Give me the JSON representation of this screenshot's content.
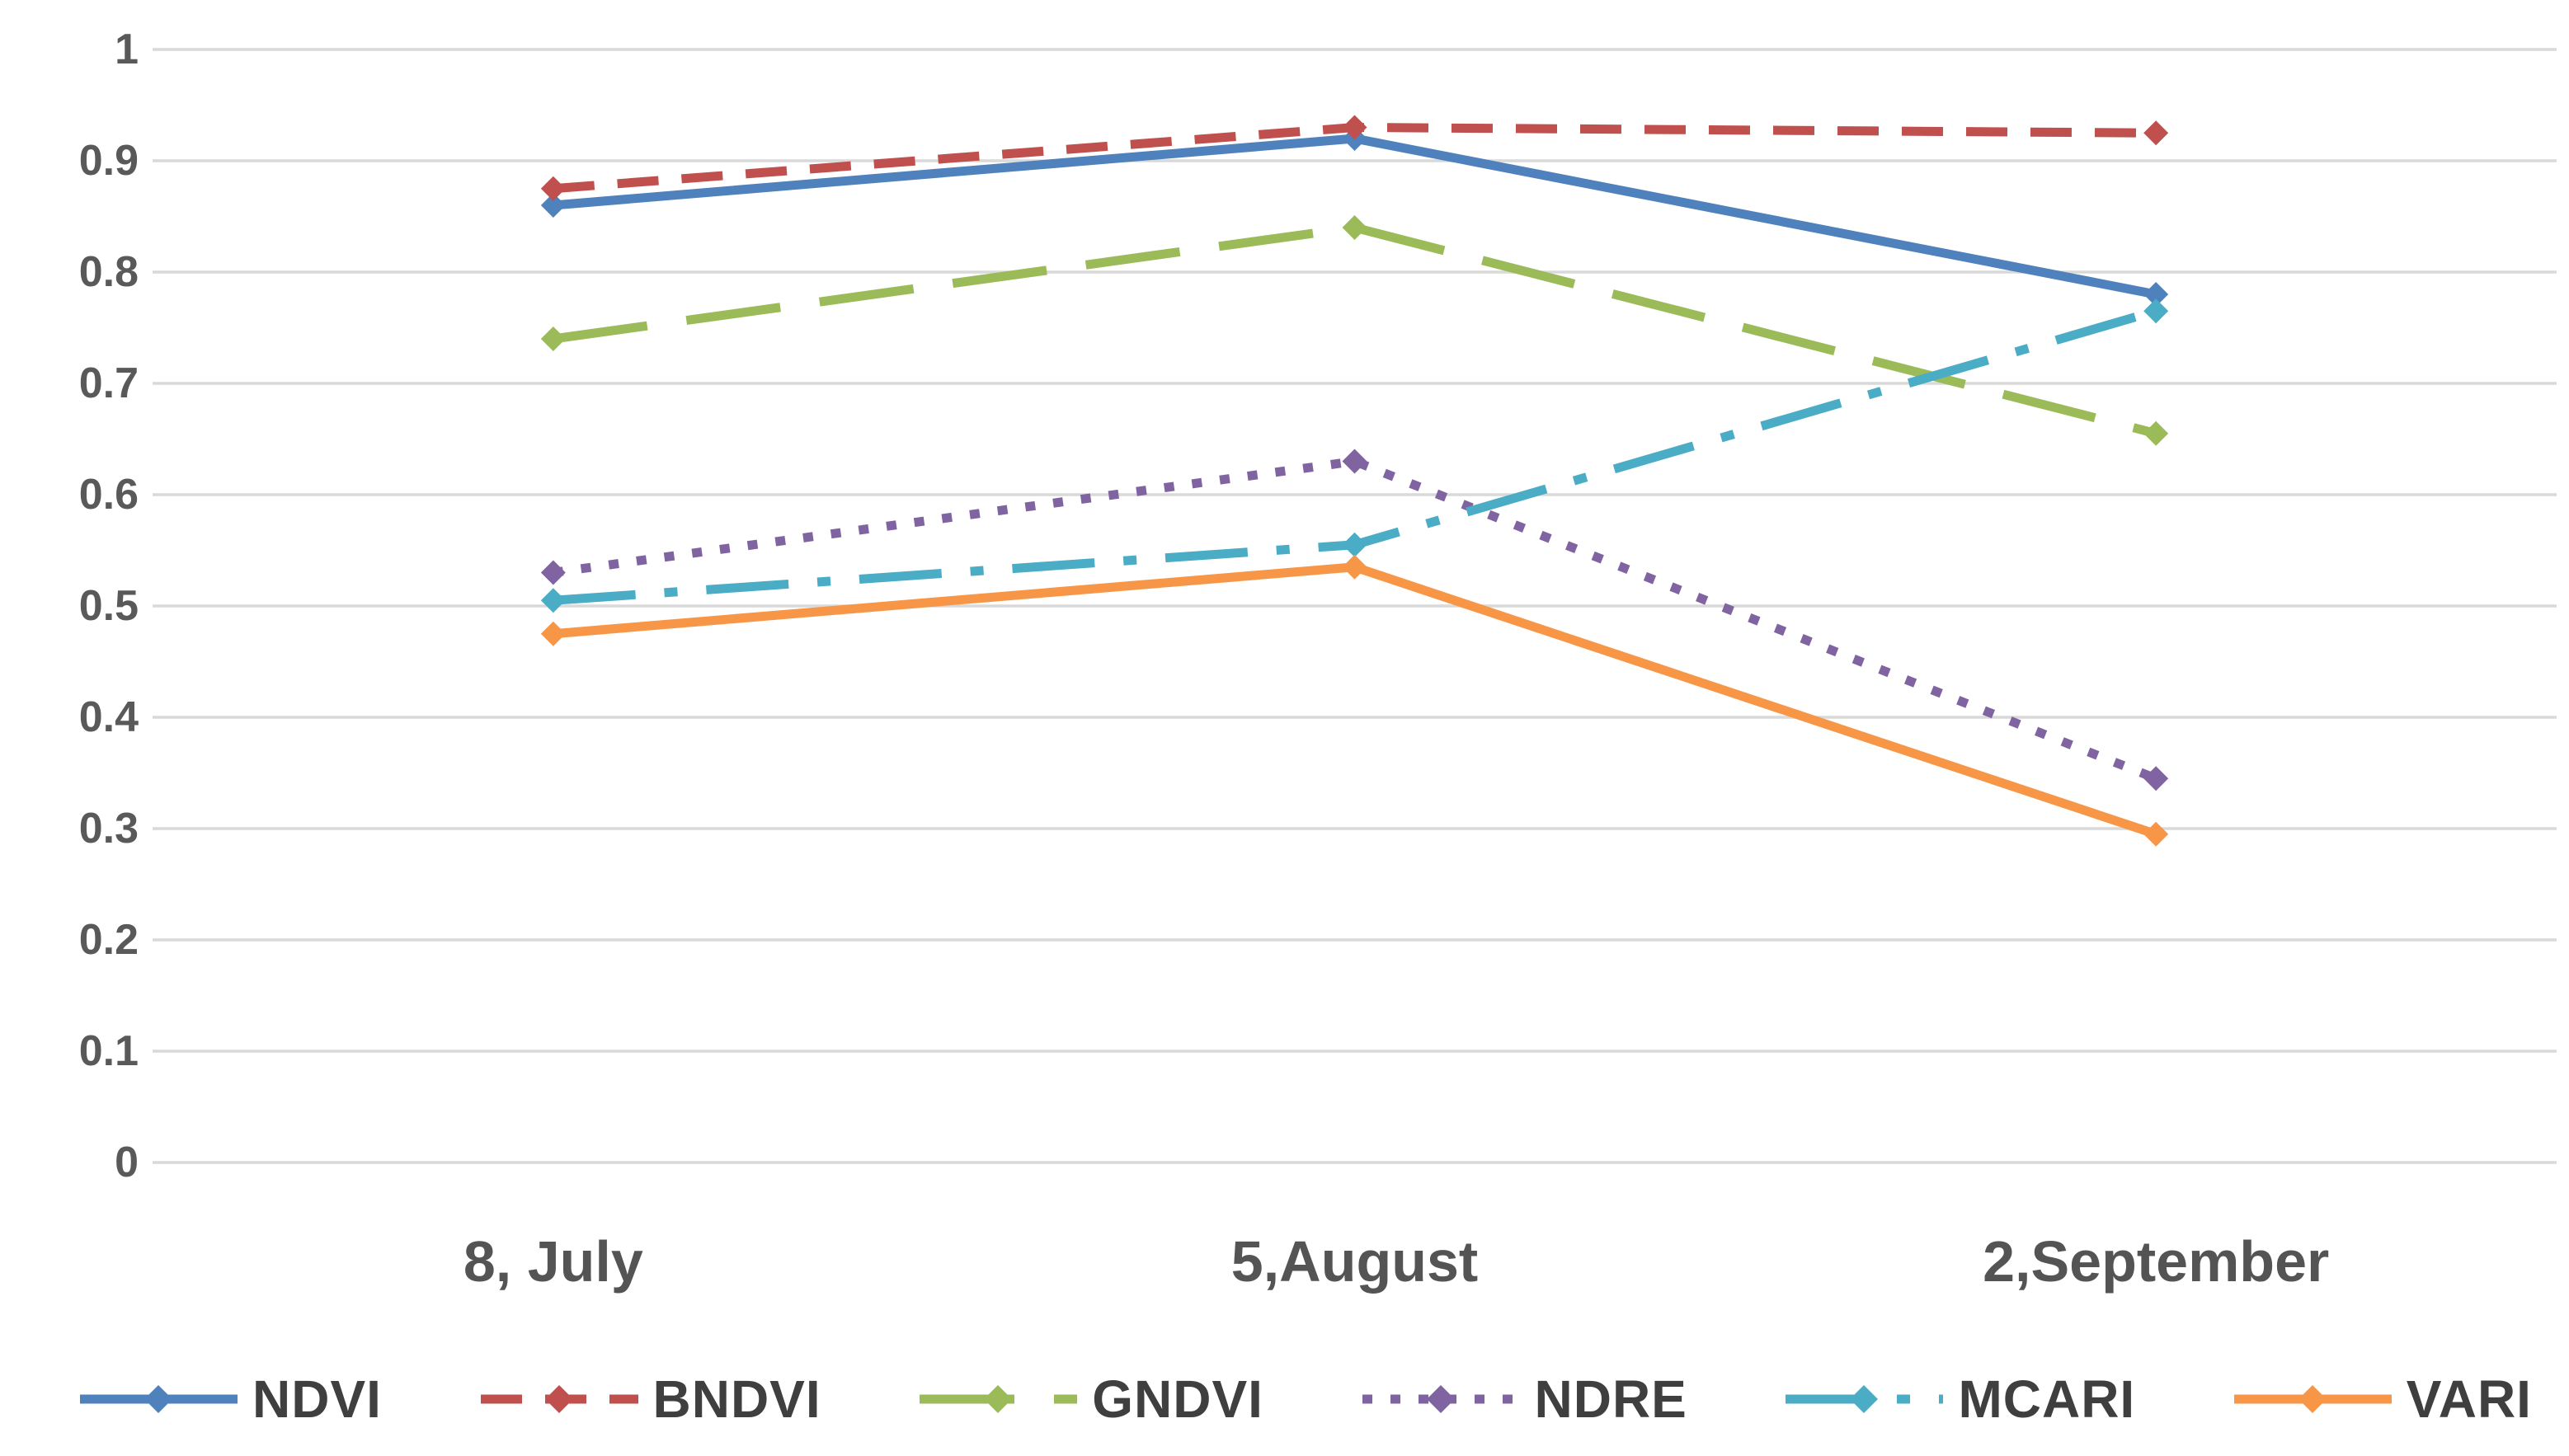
{
  "chart_data": {
    "type": "line",
    "title": "",
    "xlabel": "",
    "ylabel": "",
    "categories": [
      "8, July",
      "5,August",
      "2,September"
    ],
    "series": [
      {
        "name": "NDVI",
        "color": "#4F81BD",
        "line_style": "solid",
        "marker": "diamond",
        "values": [
          0.86,
          0.92,
          0.78
        ]
      },
      {
        "name": "BNDVI",
        "color": "#C0504D",
        "line_style": "dash",
        "marker": "diamond",
        "values": [
          0.875,
          0.93,
          0.925
        ]
      },
      {
        "name": "GNDVI",
        "color": "#9BBB59",
        "line_style": "long-dash",
        "marker": "diamond",
        "values": [
          0.74,
          0.84,
          0.655
        ]
      },
      {
        "name": "NDRE",
        "color": "#8064A2",
        "line_style": "dot",
        "marker": "diamond",
        "values": [
          0.53,
          0.63,
          0.345
        ]
      },
      {
        "name": "MCARI",
        "color": "#4BACC6",
        "line_style": "long-dash-dot",
        "marker": "diamond",
        "values": [
          0.505,
          0.555,
          0.765
        ]
      },
      {
        "name": "VARI",
        "color": "#F79646",
        "line_style": "solid",
        "marker": "diamond",
        "values": [
          0.475,
          0.535,
          0.295
        ]
      }
    ],
    "y_axis": {
      "min": 0,
      "max": 1,
      "step": 0.1,
      "tick_labels": [
        "1",
        "0.9",
        "0.8",
        "0.7",
        "0.6",
        "0.5",
        "0.4",
        "0.3",
        "0.2",
        "0.1",
        "0"
      ]
    },
    "grid": true,
    "legend_position": "bottom",
    "colors": {
      "background": "#FFFFFF",
      "gridline": "#D9D9D9",
      "axis_text": "#595959",
      "x_label_text": "#545454",
      "legend_text": "#3F3F3F"
    }
  }
}
